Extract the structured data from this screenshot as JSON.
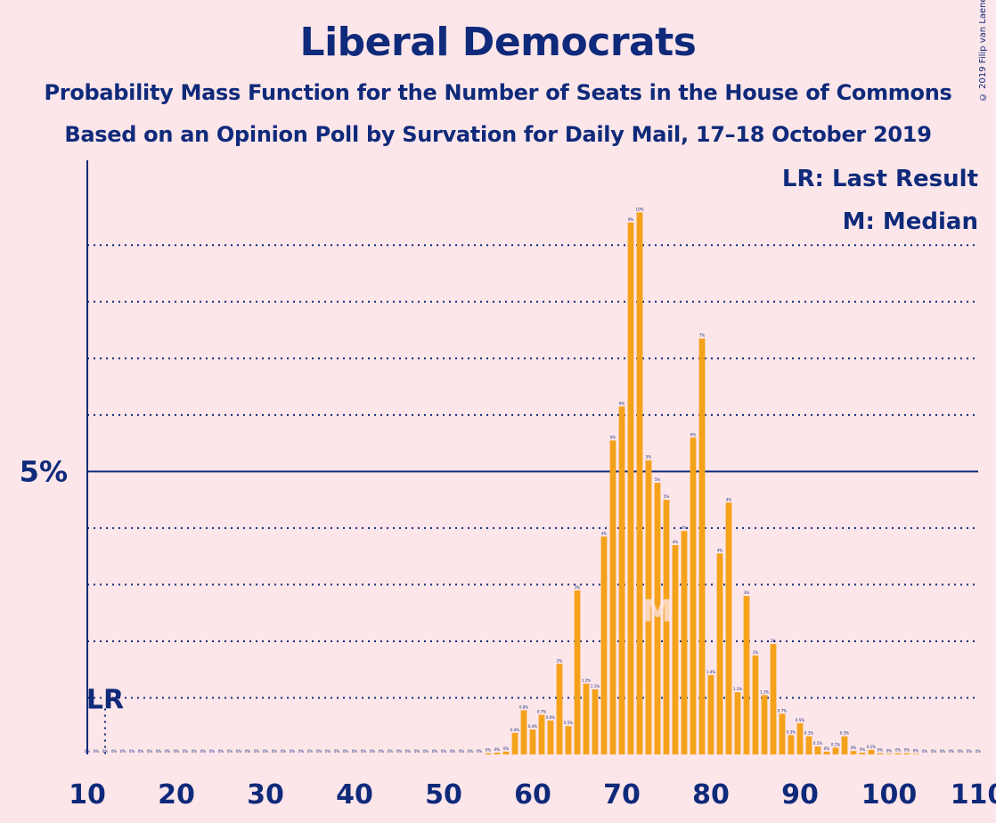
{
  "chart_data": {
    "type": "bar",
    "title": "Liberal Democrats",
    "subtitle": "Probability Mass Function for the Number of Seats in the House of Commons",
    "subtitle2": "Based on an Opinion Poll by Survation for Daily Mail, 17–18 October 2019",
    "copyright": "© 2019 Filip van Laenen",
    "xlabel": "",
    "ylabel": "",
    "xlim": [
      10,
      110
    ],
    "ylim": [
      0,
      10.5
    ],
    "x_ticks": [
      10,
      20,
      30,
      40,
      50,
      60,
      70,
      80,
      90,
      100,
      110
    ],
    "y_ticks": [
      {
        "value": 5,
        "label": "5%"
      }
    ],
    "minor_gridlines": [
      1,
      2,
      3,
      4,
      6,
      7,
      8,
      9
    ],
    "grid": true,
    "bar_color": "#f5a21b",
    "axis_color": "#0f2a7a",
    "last_result": {
      "seat": 12,
      "label": "LR"
    },
    "median": {
      "seat": 74,
      "label": "M"
    },
    "legend": [
      "LR: Last Result",
      "M: Median"
    ],
    "legend_position": "top-right",
    "x": [
      10,
      11,
      12,
      13,
      14,
      15,
      16,
      17,
      18,
      19,
      20,
      21,
      22,
      23,
      24,
      25,
      26,
      27,
      28,
      29,
      30,
      31,
      32,
      33,
      34,
      35,
      36,
      37,
      38,
      39,
      40,
      41,
      42,
      43,
      44,
      45,
      46,
      47,
      48,
      49,
      50,
      51,
      52,
      53,
      54,
      55,
      56,
      57,
      58,
      59,
      60,
      61,
      62,
      63,
      64,
      65,
      66,
      67,
      68,
      69,
      70,
      71,
      72,
      73,
      74,
      75,
      76,
      77,
      78,
      79,
      80,
      81,
      82,
      83,
      84,
      85,
      86,
      87,
      88,
      89,
      90,
      91,
      92,
      93,
      94,
      95,
      96,
      97,
      98,
      99,
      100,
      101,
      102,
      103,
      104,
      105,
      106,
      107,
      108,
      109,
      110
    ],
    "values": [
      0,
      0,
      0,
      0,
      0,
      0,
      0,
      0,
      0,
      0,
      0,
      0,
      0,
      0,
      0,
      0,
      0,
      0,
      0,
      0,
      0,
      0,
      0,
      0,
      0,
      0,
      0,
      0,
      0,
      0,
      0,
      0,
      0,
      0,
      0,
      0,
      0,
      0,
      0,
      0,
      0,
      0,
      0,
      0,
      0,
      0.02,
      0.03,
      0.05,
      0.38,
      0.78,
      0.44,
      0.7,
      0.6,
      1.6,
      0.5,
      2.9,
      1.25,
      1.15,
      3.85,
      5.55,
      6.15,
      9.4,
      9.58,
      5.2,
      4.8,
      4.5,
      3.7,
      3.95,
      5.6,
      7.35,
      1.4,
      3.55,
      4.45,
      1.1,
      2.8,
      1.75,
      1.05,
      1.95,
      0.72,
      0.34,
      0.55,
      0.32,
      0.14,
      0.05,
      0.12,
      0.32,
      0.06,
      0.03,
      0.08,
      0.02,
      0.01,
      0.02,
      0.02,
      0.01,
      0,
      0,
      0,
      0,
      0,
      0,
      0
    ],
    "labels": [
      "0%",
      "0%",
      "0%",
      "0%",
      "0%",
      "0%",
      "0%",
      "0%",
      "0%",
      "0%",
      "0%",
      "0%",
      "0%",
      "0%",
      "0%",
      "0%",
      "0%",
      "0%",
      "0%",
      "0%",
      "0%",
      "0%",
      "0%",
      "0%",
      "0%",
      "0%",
      "0%",
      "0%",
      "0%",
      "0%",
      "0%",
      "0%",
      "0%",
      "0%",
      "0%",
      "0%",
      "0%",
      "0%",
      "0%",
      "0%",
      "0%",
      "0%",
      "0%",
      "0%",
      "0%",
      "0%",
      "0%",
      "0%",
      "0.4%",
      "0.8%",
      "0.4%",
      "0.7%",
      "0.6%",
      "2%",
      "0.5%",
      "3%",
      "1.2%",
      "1.1%",
      "4%",
      "6%",
      "6%",
      "9%",
      "10%",
      "5%",
      "5%",
      "5%",
      "4%",
      "4%",
      "6%",
      "7%",
      "1.4%",
      "4%",
      "4%",
      "1.1%",
      "3%",
      "2%",
      "1.1%",
      "2%",
      "0.7%",
      "0.3%",
      "0.5%",
      "0.3%",
      "0.1%",
      "0%",
      "0.1%",
      "0.3%",
      "0%",
      "0%",
      "0.1%",
      "0%",
      "0%",
      "0%",
      "0%",
      "0%",
      "0%",
      "0%",
      "0%",
      "0%",
      "0%",
      "0%",
      "0%"
    ]
  }
}
